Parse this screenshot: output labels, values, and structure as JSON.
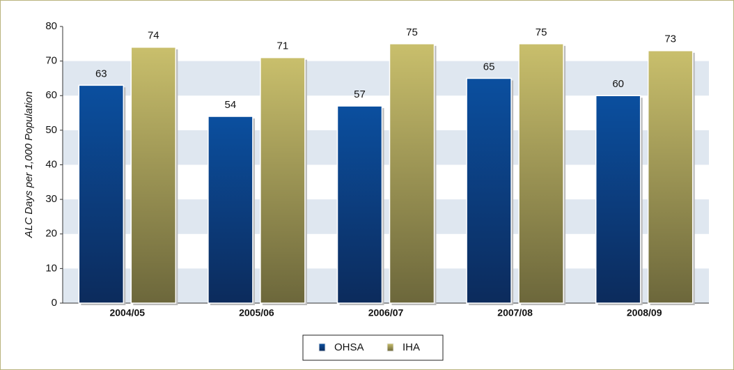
{
  "chart_data": {
    "type": "bar",
    "y_axis_label": "ALC Days per 1,000 Population",
    "categories": [
      "2004/05",
      "2005/06",
      "2006/07",
      "2007/08",
      "2008/09"
    ],
    "series": [
      {
        "name": "OHSA",
        "color": "#0b4a96",
        "values": [
          63,
          54,
          57,
          65,
          60
        ]
      },
      {
        "name": "IHA",
        "color": "#b3aa5c",
        "values": [
          74,
          71,
          75,
          75,
          73
        ]
      }
    ],
    "ylim": [
      0,
      80
    ],
    "yticks": [
      0,
      10,
      20,
      30,
      40,
      50,
      60,
      70,
      80
    ],
    "grid": "bands",
    "legend": "bottom"
  }
}
